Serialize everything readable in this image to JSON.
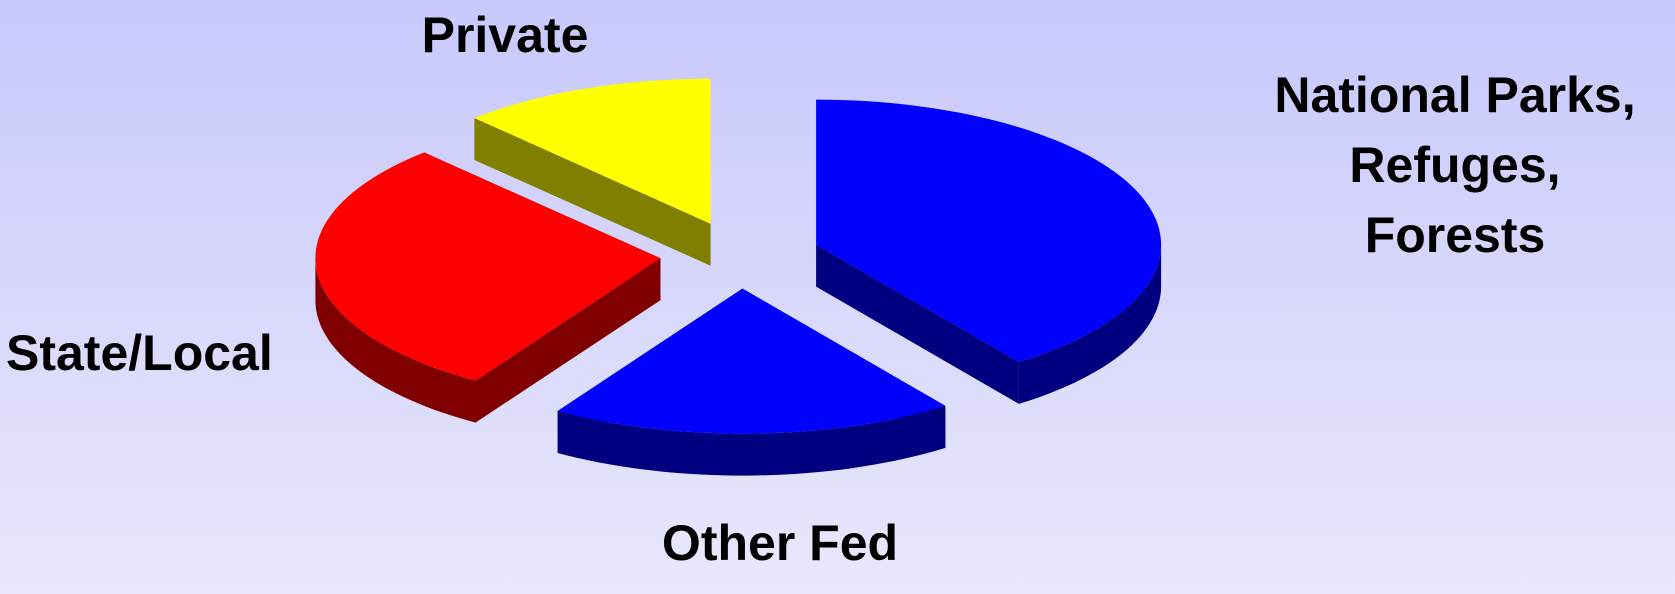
{
  "chart_data": {
    "type": "pie",
    "categories": [
      "National Parks,\nRefuges,\nForests",
      "Other Fed",
      "State/Local",
      "Private"
    ],
    "values": [
      40,
      19,
      29,
      12
    ],
    "colors": [
      "#0000ff",
      "#0000ff",
      "#ff0000",
      "#ffff00"
    ],
    "side_colors": [
      "#000080",
      "#000080",
      "#800000",
      "#808000"
    ],
    "start_angle": 0,
    "exploded": true,
    "three_d": true
  }
}
